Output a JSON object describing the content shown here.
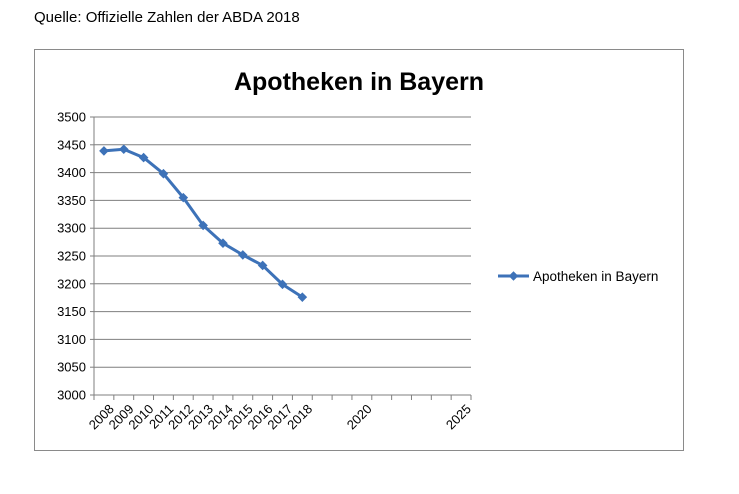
{
  "source_note": "Quelle: Offizielle Zahlen der ABDA 2018",
  "colors": {
    "series": "#3D72B8",
    "grid": "#7f7f7f",
    "frame": "#8a8a8a"
  },
  "chart_data": {
    "type": "line",
    "title": "Apotheken in Bayern",
    "xlabel": "",
    "ylabel": "",
    "ylim": [
      3000,
      3500
    ],
    "yticks": [
      3000,
      3050,
      3100,
      3150,
      3200,
      3250,
      3300,
      3350,
      3400,
      3450,
      3500
    ],
    "categories": [
      "2008",
      "2009",
      "2010",
      "2011",
      "2012",
      "2013",
      "2014",
      "2015",
      "2016",
      "2017",
      "2018",
      "",
      "",
      "2020",
      "",
      "",
      "",
      "",
      "2025"
    ],
    "grid": true,
    "legend_position": "right",
    "series": [
      {
        "name": "Apotheken in Bayern",
        "marker": "diamond",
        "values": [
          3439,
          3442,
          3427,
          3398,
          3355,
          3305,
          3273,
          3252,
          3233,
          3199,
          3176,
          null,
          null,
          null,
          null,
          null,
          null,
          null,
          null
        ]
      }
    ]
  }
}
